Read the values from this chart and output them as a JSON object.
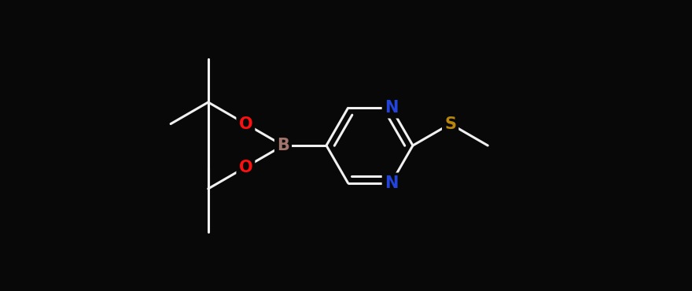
{
  "background_color": "#080808",
  "bond_color": "#f0f0f0",
  "atom_colors": {
    "B": "#a0746a",
    "O": "#ff1010",
    "N": "#2244dd",
    "S": "#b8860b",
    "C": "#f0f0f0"
  },
  "figsize": [
    8.8,
    3.7
  ],
  "dpi": 100,
  "bond_lw": 2.2,
  "font_size": 15
}
